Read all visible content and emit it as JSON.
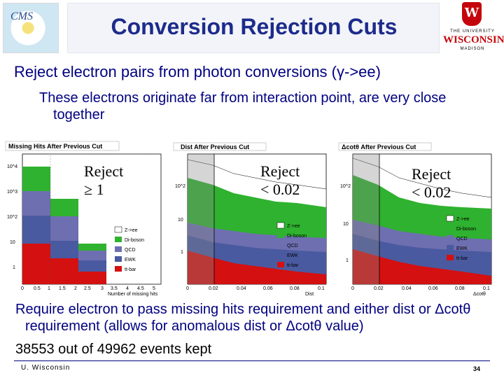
{
  "header": {
    "title": "Conversion Rejection Cuts",
    "cms_logo_text": "CMS",
    "uw_logo": {
      "line1": "THE UNIVERSITY",
      "line2": "WISCONSIN",
      "line3": "MADISON",
      "crest": "W"
    }
  },
  "body": {
    "bullet1": "Reject electron pairs from photon conversions (γ->ee)",
    "bullet2": "These electrons originate far from interaction point, are very close together"
  },
  "legend": [
    "Z->ee",
    "Di-boson",
    "QCD",
    "EWK",
    "tt-bar"
  ],
  "colors": {
    "zee": "#ffffff",
    "diboson": "#2fb22f",
    "qcd": "#6e6fb0",
    "ewk": "#4a5aa0",
    "ttbar": "#d41010"
  },
  "chart_data": [
    {
      "type": "area",
      "title": "Missing Hits After Previous Cut",
      "xlabel": "Number of missing hits",
      "x_ticks": [
        "0",
        "0.5",
        "1",
        "1.5",
        "2",
        "2.5",
        "3",
        "3.5",
        "4",
        "4.5",
        "5"
      ],
      "y_ticks": [
        "10^4",
        "10^3",
        "10^2",
        "10",
        "1"
      ],
      "log_y": true,
      "annotation": "Reject ≥ 1",
      "reject_line": "Reject",
      "reject_value": "≥ 1"
    },
    {
      "type": "area",
      "title": "Dist After Previous Cut",
      "xlabel": "Dist",
      "x_ticks": [
        "0",
        "0.02",
        "0.04",
        "0.06",
        "0.08",
        "0.1"
      ],
      "y_ticks": [
        "10^2",
        "10",
        "1"
      ],
      "log_y": true,
      "reject_line": "Reject",
      "reject_value": "< 0.02"
    },
    {
      "type": "area",
      "title": "Δcotθ After Previous Cut",
      "xlabel": "Δcotθ",
      "x_ticks": [
        "0",
        "0.02",
        "0.04",
        "0.06",
        "0.08",
        "0.1"
      ],
      "y_ticks": [
        "10^2",
        "10",
        "1"
      ],
      "log_y": true,
      "reject_line": "Reject",
      "reject_value": "< 0.02"
    }
  ],
  "bottom": {
    "requirement": "Require electron to pass missing hits requirement and either dist or Δcotθ requirement (allows for anomalous dist or Δcotθ value)",
    "events": "38553 out of 49962 events kept"
  },
  "footer": {
    "left": "U. Wisconsin",
    "page": "34"
  }
}
